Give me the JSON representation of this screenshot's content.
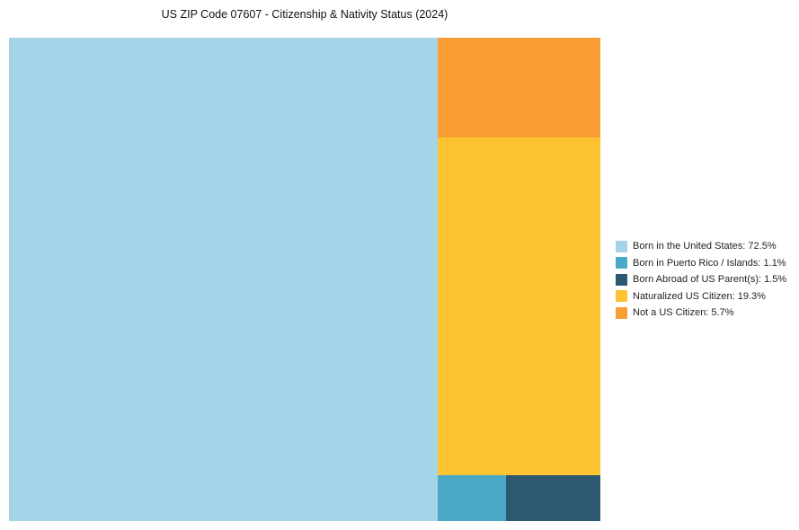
{
  "title": "US ZIP Code 07607 - Citizenship & Nativity Status (2024)",
  "chart_data": {
    "type": "treemap",
    "title": "US ZIP Code 07607 - Citizenship & Nativity Status (2024)",
    "unit": "%",
    "legend_position": "right",
    "segments": [
      {
        "label": "Born in the United States",
        "value": 72.5,
        "color": "#A5D3E8"
      },
      {
        "label": "Born in Puerto Rico / Islands",
        "value": 1.1,
        "color": "#4AA9C7"
      },
      {
        "label": "Born Abroad of US Parent(s)",
        "value": 1.5,
        "color": "#2D5872"
      },
      {
        "label": "Naturalized US Citizen",
        "value": 19.3,
        "color": "#FDC331"
      },
      {
        "label": "Not a US Citizen",
        "value": 5.7,
        "color": "#F99D35"
      }
    ]
  }
}
